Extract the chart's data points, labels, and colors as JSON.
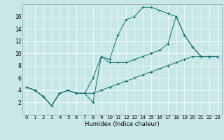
{
  "xlabel": "Humidex (Indice chaleur)",
  "xlim": [
    -0.5,
    23.5
  ],
  "ylim": [
    0,
    18
  ],
  "xticks": [
    0,
    1,
    2,
    3,
    4,
    5,
    6,
    7,
    8,
    9,
    10,
    11,
    12,
    13,
    14,
    15,
    16,
    17,
    18,
    19,
    20,
    21,
    22,
    23
  ],
  "yticks": [
    2,
    4,
    6,
    8,
    10,
    12,
    14,
    16
  ],
  "bg_color": "#c8e8e8",
  "line_color": "#1a6e6e",
  "series1_x": [
    0,
    1,
    2,
    3,
    4,
    5,
    6,
    7,
    8,
    9,
    10,
    11,
    12,
    13,
    14,
    15,
    16,
    17,
    18,
    19,
    20,
    21,
    22,
    23
  ],
  "series1_y": [
    4.5,
    4.0,
    3.0,
    1.5,
    3.5,
    4.0,
    3.5,
    3.5,
    2.0,
    9.5,
    9.0,
    13.0,
    15.5,
    16.0,
    17.5,
    17.5,
    17.0,
    16.5,
    16.0,
    13.0,
    11.0,
    9.5,
    9.5,
    9.5
  ],
  "series2_x": [
    0,
    1,
    2,
    3,
    4,
    5,
    6,
    7,
    8,
    9,
    10,
    11,
    12,
    13,
    14,
    15,
    16,
    17,
    18,
    19,
    20,
    21,
    22,
    23
  ],
  "series2_y": [
    4.5,
    4.0,
    3.0,
    1.5,
    3.5,
    4.0,
    3.5,
    3.5,
    6.0,
    9.5,
    8.5,
    8.5,
    8.5,
    9.0,
    9.5,
    10.0,
    10.5,
    11.5,
    16.0,
    13.0,
    11.0,
    9.5,
    9.5,
    9.5
  ],
  "series3_x": [
    0,
    1,
    2,
    3,
    4,
    5,
    6,
    7,
    8,
    9,
    10,
    11,
    12,
    13,
    14,
    15,
    16,
    17,
    18,
    19,
    20,
    21,
    22,
    23
  ],
  "series3_y": [
    4.5,
    4.0,
    3.0,
    1.5,
    3.5,
    4.0,
    3.5,
    3.5,
    3.5,
    4.0,
    4.5,
    5.0,
    5.5,
    6.0,
    6.5,
    7.0,
    7.5,
    8.0,
    8.5,
    9.0,
    9.5,
    9.5,
    9.5,
    9.5
  ],
  "grid_color": "#ffffff",
  "tick_fontsize": 5.0,
  "xlabel_fontsize": 6.0
}
